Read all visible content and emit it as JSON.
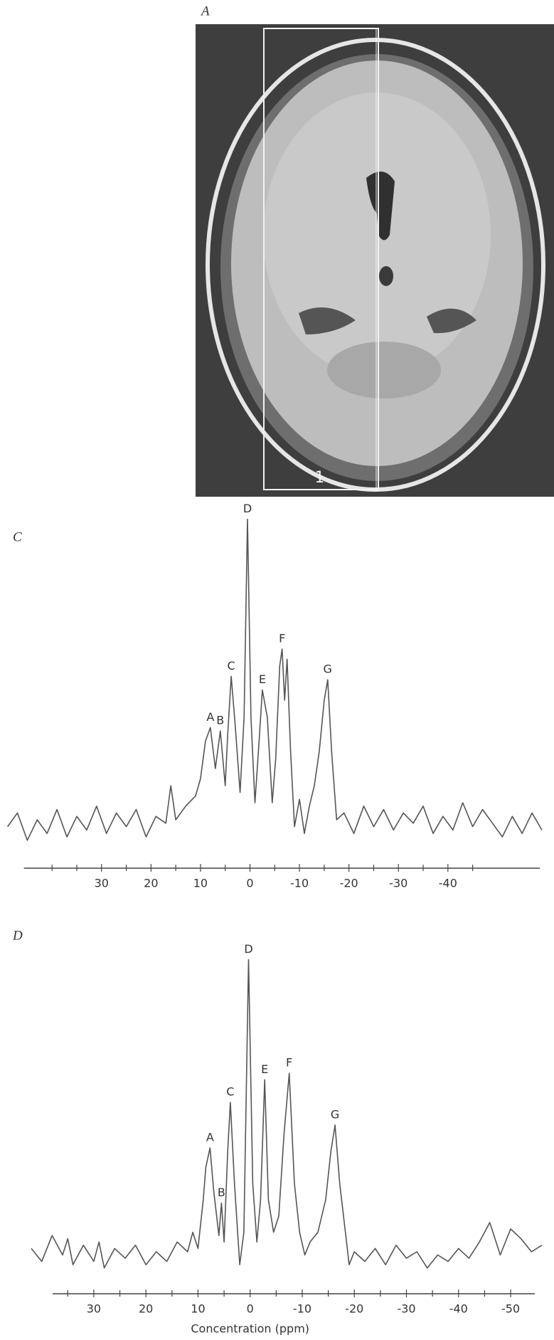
{
  "panel_a": {
    "label": "A",
    "roi_label": "1"
  },
  "chart_data": [
    {
      "type": "line",
      "panel_label": "C",
      "color": "#555555",
      "x": [
        49,
        47,
        45,
        43,
        41,
        39,
        37,
        35,
        33,
        31,
        29,
        27,
        25,
        23,
        21,
        19,
        17,
        16,
        15,
        13,
        11,
        10,
        9,
        8,
        7,
        6,
        5,
        4.5,
        3.8,
        3,
        2,
        1.2,
        0.5,
        -0.2,
        -1,
        -1.8,
        -2.5,
        -3.5,
        -4.5,
        -5.2,
        -6,
        -6.5,
        -7,
        -7.5,
        -8.2,
        -9,
        -10,
        -11,
        -12,
        -13,
        -14,
        -15,
        -15.7,
        -16.5,
        -17.5,
        -19,
        -21,
        -23,
        -25,
        -27,
        -29,
        -31,
        -33,
        -35,
        -37,
        -39,
        -41,
        -43,
        -45,
        -47,
        -49,
        -51,
        -53,
        -55,
        -57,
        -59
      ],
      "values": [
        8,
        12,
        4,
        10,
        6,
        13,
        5,
        11,
        7,
        14,
        6,
        12,
        8,
        13,
        5,
        11,
        9,
        20,
        10,
        14,
        17,
        22,
        33,
        37,
        25,
        36,
        20,
        35,
        52,
        38,
        18,
        40,
        98,
        40,
        15,
        32,
        48,
        40,
        15,
        28,
        55,
        60,
        45,
        57,
        30,
        8,
        16,
        6,
        14,
        20,
        30,
        45,
        51,
        30,
        10,
        12,
        6,
        14,
        8,
        13,
        7,
        12,
        9,
        14,
        6,
        11,
        7,
        15,
        8,
        13,
        9,
        5,
        11,
        6,
        12,
        7
      ],
      "xlim": [
        50,
        -60
      ],
      "ylim": [
        0,
        100
      ],
      "xticks": [
        30,
        20,
        10,
        0,
        -10,
        -20,
        -30,
        -40
      ],
      "minor_xticks": [
        40,
        35,
        25,
        15,
        5,
        -5,
        -15,
        -25,
        -35,
        -45
      ],
      "peaks": [
        {
          "label": "A",
          "x": 8,
          "y": 37
        },
        {
          "label": "B",
          "x": 6,
          "y": 36
        },
        {
          "label": "C",
          "x": 3.8,
          "y": 52
        },
        {
          "label": "D",
          "x": 0.5,
          "y": 98
        },
        {
          "label": "E",
          "x": -2.5,
          "y": 48
        },
        {
          "label": "F",
          "x": -6.5,
          "y": 60
        },
        {
          "label": "G",
          "x": -15.7,
          "y": 51
        }
      ]
    },
    {
      "type": "line",
      "panel_label": "D",
      "color": "#555555",
      "xlabel": "Concentration (ppm)",
      "x": [
        42,
        40,
        38,
        36,
        35,
        34,
        32,
        30,
        29,
        28,
        26,
        24,
        22,
        20,
        18,
        16,
        14,
        12,
        11,
        10,
        9,
        8.5,
        7.7,
        7,
        6,
        5.5,
        5,
        4.3,
        3.8,
        3,
        2,
        1.2,
        0.3,
        -0.5,
        -1.3,
        -2,
        -2.8,
        -3.5,
        -4.5,
        -5.5,
        -6.5,
        -7.5,
        -8.5,
        -9.5,
        -10.5,
        -11.5,
        -13,
        -14.5,
        -15.5,
        -16.3,
        -17.2,
        -18.5,
        -19,
        -20,
        -22,
        -24,
        -26,
        -28,
        -30,
        -32,
        -34,
        -36,
        -38,
        -40,
        -42,
        -44,
        -46,
        -48,
        -50,
        -52,
        -54,
        -56
      ],
      "values": [
        10,
        6,
        14,
        8,
        13,
        5,
        11,
        6,
        12,
        4,
        10,
        7,
        11,
        5,
        9,
        6,
        12,
        9,
        15,
        10,
        25,
        35,
        41,
        28,
        14,
        24,
        12,
        40,
        55,
        30,
        5,
        15,
        99,
        30,
        12,
        25,
        62,
        25,
        15,
        20,
        45,
        64,
        30,
        15,
        8,
        12,
        15,
        25,
        40,
        48,
        30,
        12,
        5,
        9,
        6,
        10,
        5,
        11,
        7,
        9,
        4,
        8,
        6,
        10,
        7,
        12,
        18,
        8,
        16,
        13,
        9,
        11
      ],
      "xlim": [
        42,
        -56
      ],
      "ylim": [
        0,
        100
      ],
      "xticks": [
        30,
        20,
        10,
        0,
        -10,
        -20,
        -30,
        -40,
        -50
      ],
      "minor_xticks": [
        35,
        25,
        15,
        5,
        -5,
        -15,
        -25,
        -35,
        -45
      ],
      "peaks": [
        {
          "label": "A",
          "x": 7.7,
          "y": 41
        },
        {
          "label": "B",
          "x": 5.5,
          "y": 24
        },
        {
          "label": "C",
          "x": 3.8,
          "y": 55
        },
        {
          "label": "D",
          "x": 0.3,
          "y": 99
        },
        {
          "label": "E",
          "x": -2.8,
          "y": 62
        },
        {
          "label": "F",
          "x": -7.5,
          "y": 64
        },
        {
          "label": "G",
          "x": -16.3,
          "y": 48
        }
      ]
    }
  ]
}
